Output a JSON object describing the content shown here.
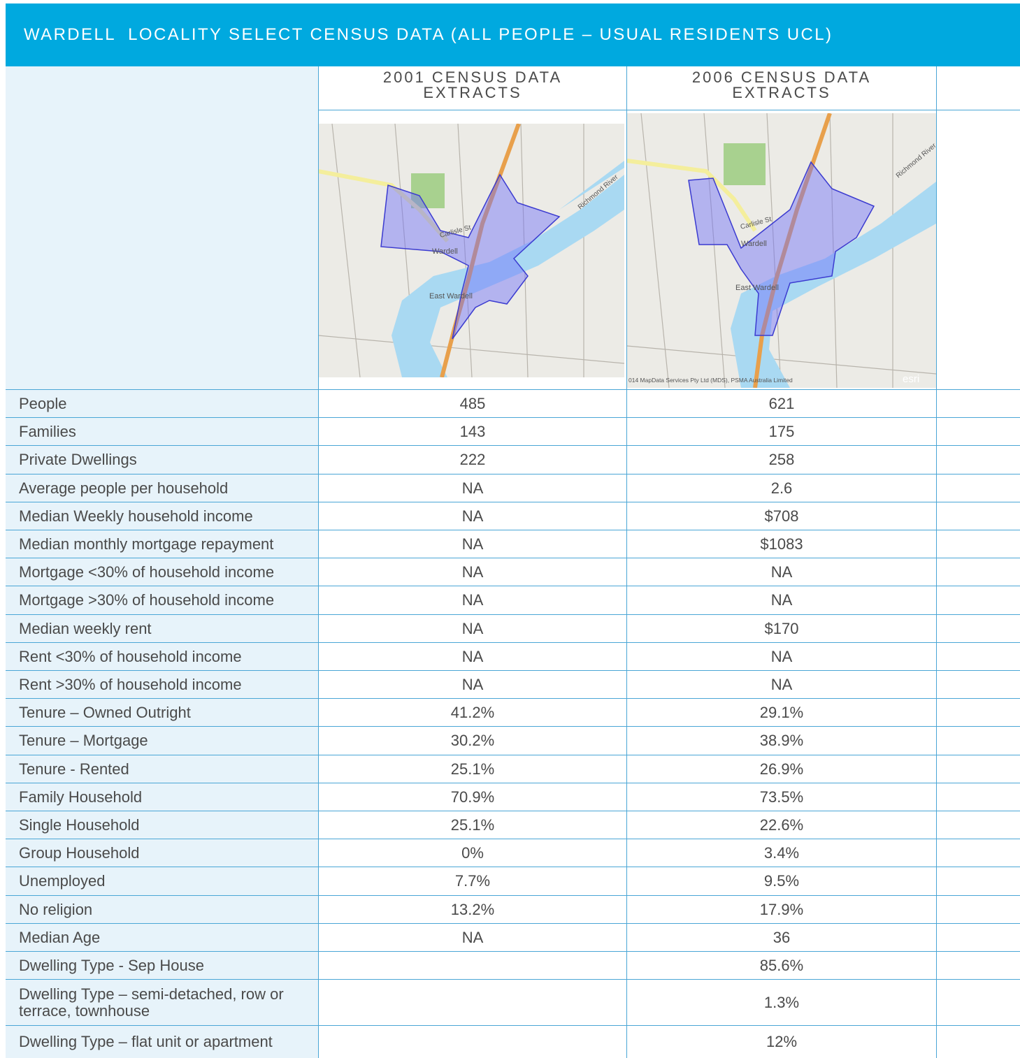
{
  "title": "WARDELL  LOCALITY SELECT CENSUS DATA (ALL PEOPLE – USUAL RESIDENTS UCL)",
  "columns": [
    "2001 CENSUS DATA EXTRACTS",
    "2006 CENSUS DATA EXTRACTS"
  ],
  "maps": [
    {
      "labels": [
        "Richmond River",
        "Carlisle St",
        "Wardell",
        "East Wardell"
      ]
    },
    {
      "labels": [
        "Richmond River",
        "Carlisle St",
        "Wardell",
        "East Wardell",
        "014 MapData Services Pty Ltd (MDS), PSMA Australia Limited",
        "esri"
      ]
    }
  ],
  "rows": [
    [
      "People",
      "485",
      "621"
    ],
    [
      "Families",
      "143",
      "175"
    ],
    [
      "Private Dwellings",
      "222",
      "258"
    ],
    [
      "Average people per household",
      "NA",
      "2.6"
    ],
    [
      "Median Weekly household income",
      "NA",
      "$708"
    ],
    [
      "Median monthly mortgage repayment",
      "NA",
      "$1083"
    ],
    [
      "Mortgage <30% of household income",
      "NA",
      "NA"
    ],
    [
      "Mortgage >30% of household income",
      "NA",
      "NA"
    ],
    [
      "Median weekly rent",
      "NA",
      "$170"
    ],
    [
      "Rent <30% of household income",
      "NA",
      "NA"
    ],
    [
      "Rent >30% of household income",
      "NA",
      "NA"
    ],
    [
      "Tenure – Owned Outright",
      "41.2%",
      "29.1%"
    ],
    [
      "Tenure – Mortgage",
      "30.2%",
      "38.9%"
    ],
    [
      "Tenure - Rented",
      "25.1%",
      "26.9%"
    ],
    [
      "Family Household",
      "70.9%",
      "73.5%"
    ],
    [
      "Single Household",
      "25.1%",
      "22.6%"
    ],
    [
      "Group Household",
      "0%",
      "3.4%"
    ],
    [
      "Unemployed",
      "7.7%",
      "9.5%"
    ],
    [
      "No religion",
      "13.2%",
      "17.9%"
    ],
    [
      "Median Age",
      "NA",
      "36"
    ],
    [
      "Dwelling Type  - Sep House",
      null,
      "85.6%"
    ],
    [
      "Dwelling Type – semi-detached, row or terrace, townhouse",
      null,
      "1.3%"
    ],
    [
      "Dwelling Type – flat unit or apartment",
      null,
      "12%"
    ]
  ]
}
